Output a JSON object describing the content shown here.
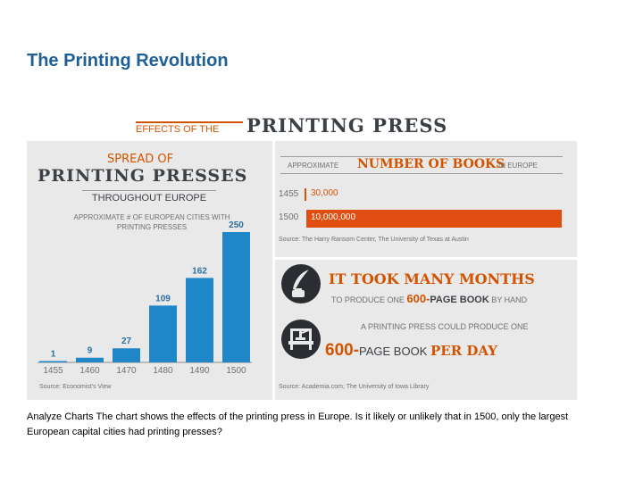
{
  "slide": {
    "title": "The Printing Revolution",
    "caption": "Analyze Charts The chart shows the effects of the printing press in Europe. Is it likely or unlikely that in 1500, only the largest European capital cities had printing presses?"
  },
  "infographic": {
    "heading_small": "EFFECTS OF THE",
    "heading_big": "PRINTING PRESS",
    "spread": {
      "title_line1": "SPREAD OF",
      "title_line2": "PRINTING PRESSES",
      "title_line3": "THROUGHOUT EUROPE",
      "ylabel": "APPROXIMATE # OF EUROPEAN CITIES WITH PRINTING PRESSES",
      "source": "Source: Economist's View"
    },
    "books": {
      "header_a": "APPROXIMATE",
      "header_b": "NUMBER OF BOOKS",
      "header_c": "IN EUROPE",
      "years": [
        "1455",
        "1500"
      ],
      "value_labels": [
        "30,000",
        "10,000,000"
      ],
      "source": "Source: The Harry Ransom Center, The University of Texas at Austin"
    },
    "months": {
      "line1": "IT TOOK MANY MONTHS",
      "line2_a": "TO PRODUCE ONE ",
      "line2_b": "600-",
      "line2_c": "PAGE BOOK",
      "line2_d": " BY HAND"
    },
    "perday": {
      "line1": "A PRINTING PRESS COULD PRODUCE ONE",
      "line2_a": "600-",
      "line2_b": "PAGE BOOK ",
      "line2_c": "PER DAY",
      "source": "Source: Academia.com; The University of Iowa Library"
    },
    "icons": {
      "quill": "quill-inkwell-icon",
      "press": "printing-press-icon"
    },
    "colors": {
      "bar_blue": "#1f86c8",
      "accent_orange": "#d35400",
      "book_bar": "#e04e12",
      "panel_bg": "#e9e9e9"
    }
  },
  "chart_data": [
    {
      "type": "bar",
      "title": "SPREAD OF PRINTING PRESSES THROUGHOUT EUROPE",
      "ylabel": "APPROXIMATE # OF EUROPEAN CITIES WITH PRINTING PRESSES",
      "categories": [
        "1455",
        "1460",
        "1470",
        "1480",
        "1490",
        "1500"
      ],
      "values": [
        1,
        9,
        27,
        109,
        162,
        250
      ],
      "ylim": [
        0,
        250
      ],
      "grid": false
    },
    {
      "type": "bar",
      "title": "APPROXIMATE NUMBER OF BOOKS IN EUROPE",
      "orientation": "horizontal",
      "categories": [
        "1455",
        "1500"
      ],
      "values": [
        30000,
        10000000
      ],
      "xlim": [
        0,
        10000000
      ],
      "grid": false
    }
  ]
}
